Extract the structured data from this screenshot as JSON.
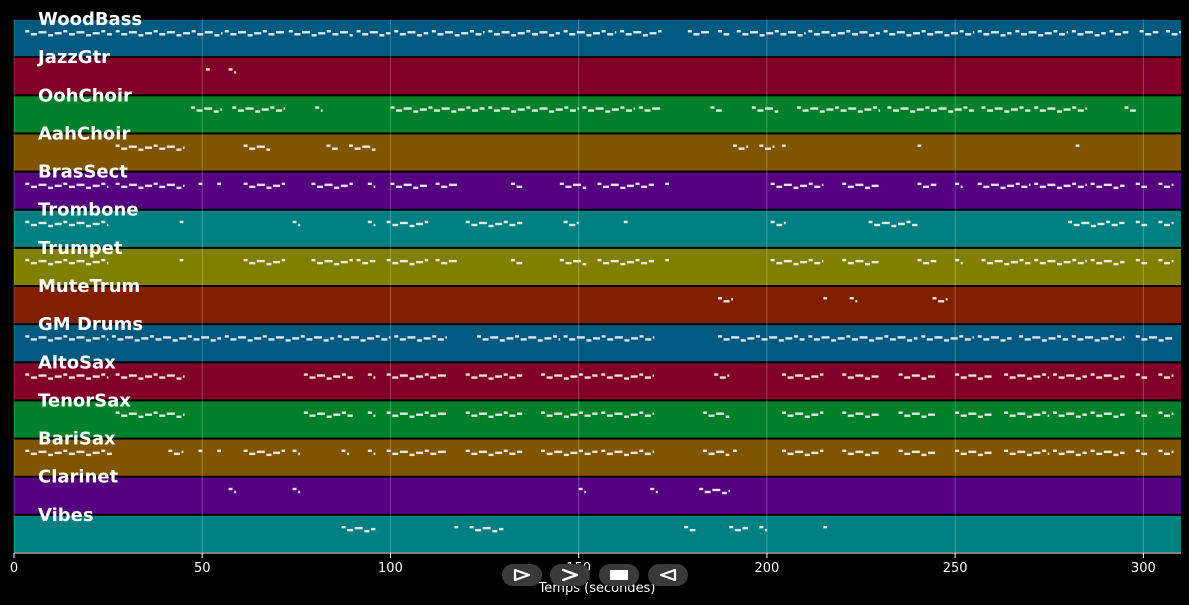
{
  "chart_data": {
    "type": "piano-roll",
    "xlabel": "Temps (secondes)",
    "xlim": [
      0,
      310
    ],
    "xticks": [
      0,
      50,
      100,
      150,
      200,
      250,
      300
    ],
    "grid": true,
    "tracks": [
      {
        "name": "WoodBass",
        "color": "#005a80",
        "segments": [
          [
            3,
            26
          ],
          [
            27,
            55
          ],
          [
            56,
            72
          ],
          [
            73,
            90
          ],
          [
            91,
            100
          ],
          [
            101,
            110
          ],
          [
            111,
            125
          ],
          [
            126,
            145
          ],
          [
            146,
            160
          ],
          [
            161,
            172
          ],
          [
            179,
            185
          ],
          [
            187,
            190
          ],
          [
            192,
            210
          ],
          [
            211,
            230
          ],
          [
            231,
            255
          ],
          [
            256,
            265
          ],
          [
            266,
            280
          ],
          [
            281,
            290
          ],
          [
            291,
            296
          ],
          [
            299,
            304
          ],
          [
            306,
            310
          ]
        ]
      },
      {
        "name": "JazzGtr",
        "color": "#800028",
        "segments": [
          [
            51,
            52
          ],
          [
            57,
            59
          ]
        ]
      },
      {
        "name": "OohChoir",
        "color": "#00802a",
        "segments": [
          [
            47,
            55
          ],
          [
            58,
            72
          ],
          [
            80,
            82
          ],
          [
            100,
            125
          ],
          [
            126,
            150
          ],
          [
            151,
            165
          ],
          [
            166,
            172
          ],
          [
            185,
            188
          ],
          [
            196,
            203
          ],
          [
            208,
            230
          ],
          [
            232,
            255
          ],
          [
            257,
            270
          ],
          [
            271,
            285
          ],
          [
            295,
            298
          ]
        ]
      },
      {
        "name": "AahChoir",
        "color": "#805500",
        "segments": [
          [
            27,
            45
          ],
          [
            61,
            68
          ],
          [
            83,
            86
          ],
          [
            89,
            96
          ],
          [
            191,
            195
          ],
          [
            198,
            202
          ],
          [
            204,
            205
          ],
          [
            240,
            241
          ],
          [
            282,
            283
          ]
        ]
      },
      {
        "name": "BrasSect",
        "color": "#55007f",
        "segments": [
          [
            3,
            25
          ],
          [
            27,
            45
          ],
          [
            49,
            50
          ],
          [
            54,
            55
          ],
          [
            61,
            72
          ],
          [
            79,
            90
          ],
          [
            94,
            96
          ],
          [
            100,
            110
          ],
          [
            112,
            118
          ],
          [
            132,
            135
          ],
          [
            145,
            152
          ],
          [
            155,
            170
          ],
          [
            173,
            174
          ],
          [
            201,
            215
          ],
          [
            220,
            230
          ],
          [
            240,
            245
          ],
          [
            250,
            252
          ],
          [
            256,
            270
          ],
          [
            271,
            285
          ],
          [
            286,
            295
          ],
          [
            298,
            301
          ],
          [
            304,
            308
          ]
        ]
      },
      {
        "name": "Trombone",
        "color": "#008080",
        "segments": [
          [
            3,
            25
          ],
          [
            44,
            45
          ],
          [
            74,
            76
          ],
          [
            94,
            96
          ],
          [
            99,
            110
          ],
          [
            120,
            135
          ],
          [
            146,
            150
          ],
          [
            162,
            163
          ],
          [
            201,
            205
          ],
          [
            227,
            240
          ],
          [
            280,
            295
          ],
          [
            298,
            301
          ],
          [
            304,
            308
          ]
        ]
      },
      {
        "name": "Trumpet",
        "color": "#808000",
        "segments": [
          [
            3,
            25
          ],
          [
            44,
            45
          ],
          [
            61,
            72
          ],
          [
            79,
            90
          ],
          [
            91,
            96
          ],
          [
            99,
            110
          ],
          [
            112,
            118
          ],
          [
            132,
            135
          ],
          [
            145,
            152
          ],
          [
            155,
            170
          ],
          [
            173,
            174
          ],
          [
            201,
            215
          ],
          [
            220,
            230
          ],
          [
            240,
            245
          ],
          [
            250,
            252
          ],
          [
            257,
            270
          ],
          [
            271,
            285
          ],
          [
            286,
            295
          ],
          [
            298,
            301
          ],
          [
            304,
            308
          ]
        ]
      },
      {
        "name": "MuteTrum",
        "color": "#802000",
        "segments": [
          [
            187,
            191
          ],
          [
            215,
            216
          ],
          [
            222,
            224
          ],
          [
            244,
            248
          ]
        ]
      },
      {
        "name": "GM Drums",
        "color": "#005a80",
        "segments": [
          [
            3,
            25
          ],
          [
            26,
            55
          ],
          [
            56,
            85
          ],
          [
            86,
            100
          ],
          [
            101,
            115
          ],
          [
            123,
            145
          ],
          [
            146,
            170
          ],
          [
            187,
            210
          ],
          [
            211,
            240
          ],
          [
            241,
            255
          ],
          [
            256,
            265
          ],
          [
            267,
            280
          ],
          [
            281,
            295
          ],
          [
            298,
            308
          ]
        ]
      },
      {
        "name": "AltoSax",
        "color": "#800028",
        "segments": [
          [
            3,
            25
          ],
          [
            27,
            45
          ],
          [
            77,
            90
          ],
          [
            94,
            96
          ],
          [
            99,
            115
          ],
          [
            120,
            135
          ],
          [
            140,
            155
          ],
          [
            156,
            170
          ],
          [
            186,
            190
          ],
          [
            204,
            215
          ],
          [
            220,
            230
          ],
          [
            235,
            245
          ],
          [
            250,
            260
          ],
          [
            263,
            275
          ],
          [
            276,
            285
          ],
          [
            286,
            295
          ],
          [
            298,
            301
          ],
          [
            304,
            308
          ]
        ]
      },
      {
        "name": "TenorSax",
        "color": "#00802a",
        "segments": [
          [
            27,
            45
          ],
          [
            77,
            90
          ],
          [
            94,
            96
          ],
          [
            99,
            115
          ],
          [
            120,
            135
          ],
          [
            140,
            155
          ],
          [
            156,
            170
          ],
          [
            183,
            190
          ],
          [
            204,
            215
          ],
          [
            220,
            230
          ],
          [
            235,
            245
          ],
          [
            250,
            260
          ],
          [
            263,
            275
          ],
          [
            276,
            285
          ],
          [
            286,
            295
          ],
          [
            298,
            301
          ],
          [
            304,
            308
          ]
        ]
      },
      {
        "name": "BariSax",
        "color": "#805500",
        "segments": [
          [
            3,
            26
          ],
          [
            41,
            45
          ],
          [
            49,
            50
          ],
          [
            54,
            55
          ],
          [
            61,
            72
          ],
          [
            74,
            76
          ],
          [
            87,
            89
          ],
          [
            94,
            96
          ],
          [
            99,
            115
          ],
          [
            120,
            135
          ],
          [
            140,
            155
          ],
          [
            156,
            170
          ],
          [
            183,
            190
          ],
          [
            191,
            192
          ],
          [
            204,
            215
          ],
          [
            220,
            230
          ],
          [
            235,
            245
          ],
          [
            250,
            260
          ],
          [
            263,
            275
          ],
          [
            276,
            285
          ],
          [
            286,
            295
          ],
          [
            298,
            301
          ],
          [
            304,
            308
          ]
        ]
      },
      {
        "name": "Clarinet",
        "color": "#55007f",
        "segments": [
          [
            57,
            59
          ],
          [
            74,
            76
          ],
          [
            150,
            152
          ],
          [
            169,
            171
          ],
          [
            182,
            190
          ]
        ]
      },
      {
        "name": "Vibes",
        "color": "#008080",
        "segments": [
          [
            87,
            96
          ],
          [
            117,
            118
          ],
          [
            121,
            130
          ],
          [
            178,
            181
          ],
          [
            190,
            195
          ],
          [
            198,
            200
          ],
          [
            215,
            216
          ]
        ]
      }
    ]
  },
  "controls": [
    {
      "name": "play-icon"
    },
    {
      "name": "fast-forward-icon"
    },
    {
      "name": "stop-icon"
    },
    {
      "name": "rewind-icon"
    }
  ]
}
